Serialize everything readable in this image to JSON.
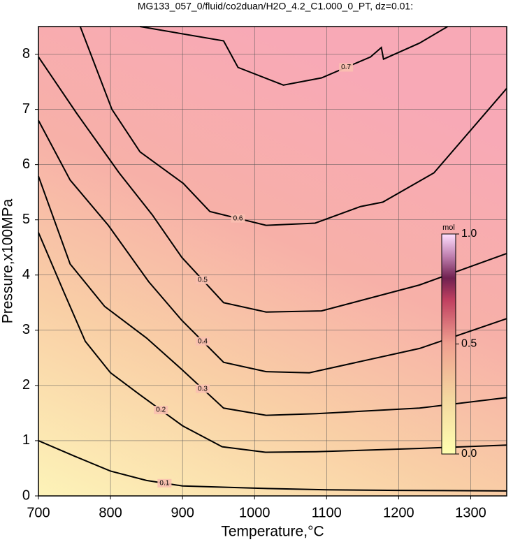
{
  "chart_data": {
    "type": "contour",
    "title": "MG133_057_0/fluid/co2duan/H2O_4.2_C1.000_0_PT, dz=0.01:",
    "x_label": "Temperature,°C",
    "y_label": "Pressure,x100MPa",
    "xlim": [
      700,
      1350
    ],
    "ylim": [
      0,
      8.5
    ],
    "xticks": [
      700,
      800,
      900,
      1000,
      1100,
      1200,
      1300
    ],
    "yticks": [
      0,
      1,
      2,
      3,
      4,
      5,
      6,
      7,
      8
    ],
    "grid": true,
    "line_color": "#000000",
    "contours": [
      {
        "level": 0.1,
        "x": [
          700,
          750,
          800,
          850,
          900,
          1000,
          1100,
          1200,
          1350
        ],
        "y": [
          1.0,
          0.72,
          0.45,
          0.28,
          0.18,
          0.14,
          0.11,
          0.1,
          0.09
        ]
      },
      {
        "level": 0.2,
        "x": [
          700,
          735,
          765,
          800,
          840,
          900,
          955,
          1015,
          1085,
          1230,
          1350
        ],
        "y": [
          4.77,
          3.7,
          2.8,
          2.23,
          1.84,
          1.27,
          0.89,
          0.79,
          0.8,
          0.86,
          0.92
        ]
      },
      {
        "level": 0.3,
        "x": [
          700,
          744,
          792,
          850,
          899,
          957,
          1016,
          1086,
          1229,
          1350
        ],
        "y": [
          5.79,
          4.2,
          3.43,
          2.86,
          2.29,
          1.59,
          1.46,
          1.49,
          1.59,
          1.78
        ]
      },
      {
        "level": 0.4,
        "x": [
          700,
          744,
          797,
          853,
          899,
          957,
          1016,
          1076,
          1229,
          1350
        ],
        "y": [
          6.8,
          5.72,
          4.9,
          3.88,
          3.18,
          2.42,
          2.25,
          2.23,
          2.67,
          3.21
        ]
      },
      {
        "level": 0.5,
        "x": [
          700,
          753,
          812,
          858,
          899,
          957,
          1016,
          1093,
          1229,
          1350
        ],
        "y": [
          7.95,
          6.93,
          5.85,
          5.09,
          4.32,
          3.5,
          3.33,
          3.35,
          3.82,
          4.39
        ]
      },
      {
        "level": 0.6,
        "x": [
          758,
          802,
          841,
          901,
          938,
          1016,
          1084,
          1147,
          1178,
          1249,
          1350
        ],
        "y": [
          8.5,
          7.0,
          6.23,
          5.66,
          5.15,
          4.9,
          4.94,
          5.24,
          5.32,
          5.85,
          7.38
        ]
      },
      {
        "level": 0.7,
        "x": [
          841,
          957,
          977,
          1040,
          1093,
          1161,
          1176,
          1179,
          1229,
          1268
        ],
        "y": [
          8.5,
          8.24,
          7.76,
          7.44,
          7.57,
          7.95,
          8.12,
          7.91,
          8.2,
          8.5
        ]
      }
    ],
    "colorbar": {
      "label": "mol",
      "lim": [
        0,
        1
      ],
      "ticks": [
        {
          "value": 0,
          "label": "0.0"
        },
        0.5,
        {
          "value": 1,
          "label": "1.0"
        }
      ]
    }
  }
}
